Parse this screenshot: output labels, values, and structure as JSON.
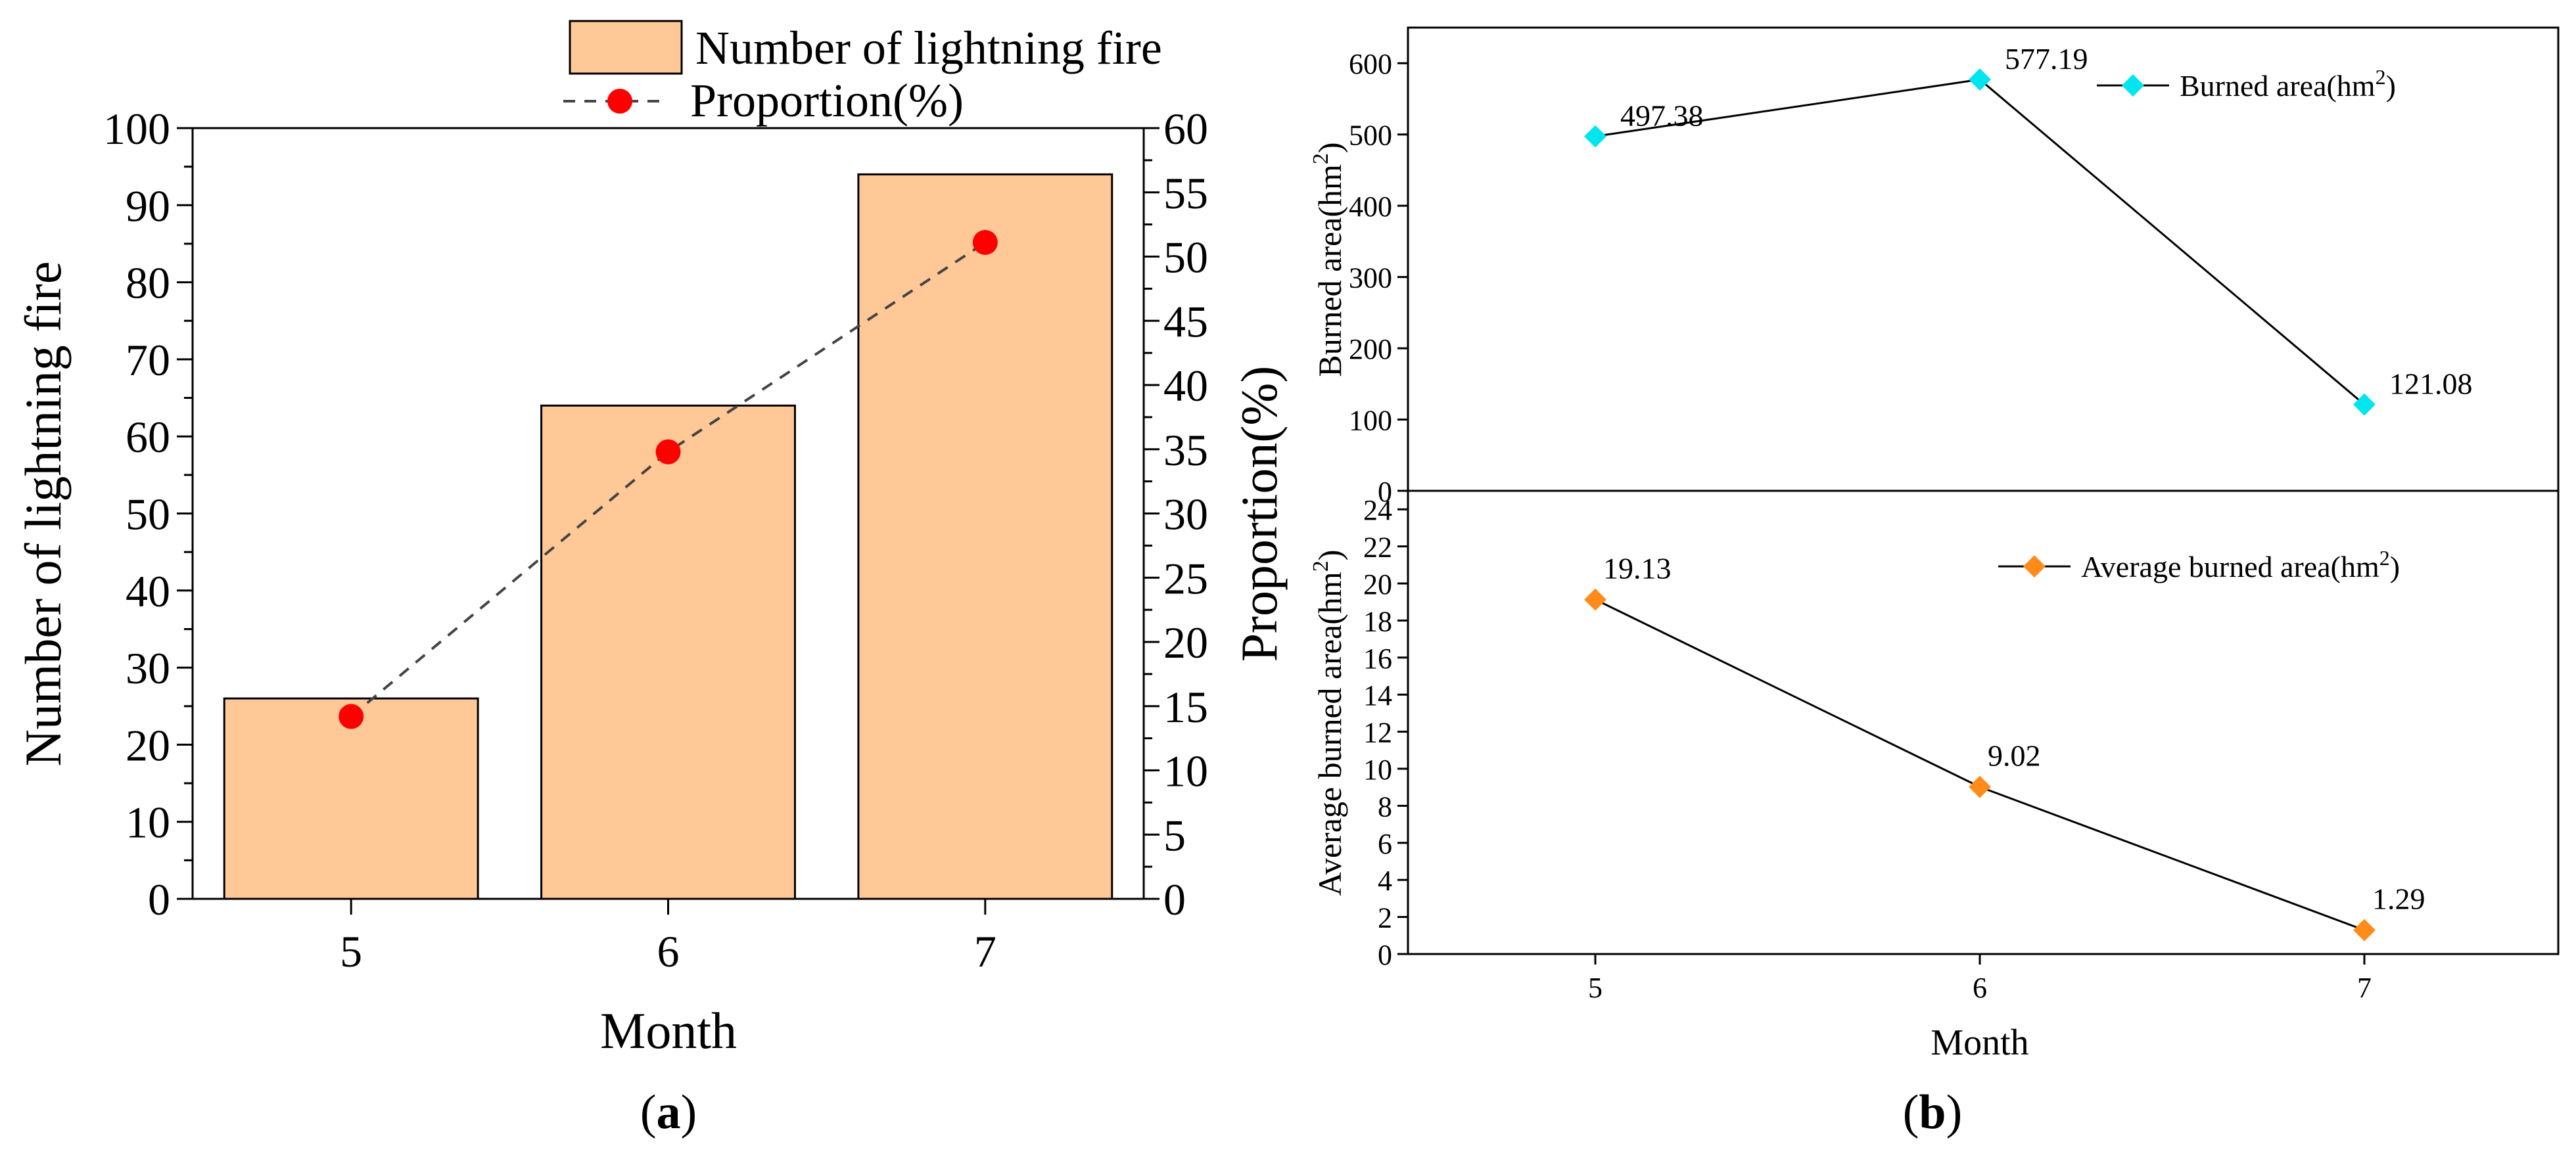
{
  "chart_data": [
    {
      "panel_label": "a",
      "type": "bar",
      "xlabel": "Month",
      "categories": [
        "5",
        "6",
        "7"
      ],
      "left_axis": {
        "label": "Number of lightning fire",
        "range": [
          0,
          100
        ],
        "ticks": [
          "0",
          "10",
          "20",
          "30",
          "40",
          "50",
          "60",
          "70",
          "80",
          "90",
          "100"
        ]
      },
      "right_axis": {
        "label": "Proportion(%)",
        "range": [
          0,
          60
        ],
        "ticks": [
          "0",
          "5",
          "10",
          "15",
          "20",
          "25",
          "30",
          "35",
          "40",
          "45",
          "50",
          "55",
          "60"
        ]
      },
      "series": [
        {
          "name": "Number of lightning fire",
          "kind": "bar",
          "axis": "left",
          "values": [
            26,
            64,
            94
          ],
          "color": "#FFC896"
        },
        {
          "name": "Proportion(%)",
          "kind": "line",
          "axis": "right",
          "values": [
            14.2,
            34.8,
            51.1
          ],
          "color": "#FF0000"
        }
      ],
      "legend": [
        "Number of lightning fire",
        "Proportion(%)"
      ],
      "legend_position": "top-right"
    },
    {
      "panel_label": "b",
      "type": "line",
      "xlabel": "Month",
      "categories": [
        "5",
        "6",
        "7"
      ],
      "subplots": [
        {
          "ylabel_text": "Burned area(hm",
          "ylabel_sup": "2",
          "ylabel_close": ")",
          "range": [
            0,
            650
          ],
          "ticks": [
            "0",
            "100",
            "200",
            "300",
            "400",
            "500",
            "600"
          ],
          "series_name": "Burned area(hm",
          "series_sup": "2",
          "series_close": ")",
          "values": [
            497.38,
            577.19,
            121.08
          ],
          "data_labels": [
            "497.38",
            "577.19",
            "121.08"
          ],
          "color": "#00E5EE",
          "legend_position": "top-right"
        },
        {
          "ylabel_text": "Average burned area(hm",
          "ylabel_sup": "2",
          "ylabel_close": ")",
          "range": [
            0,
            25
          ],
          "ticks": [
            "0",
            "2",
            "4",
            "6",
            "8",
            "10",
            "12",
            "14",
            "16",
            "18",
            "20",
            "22",
            "24"
          ],
          "series_name": "Average burned area(hm",
          "series_sup": "2",
          "series_close": ")",
          "values": [
            19.13,
            9.02,
            1.29
          ],
          "data_labels": [
            "19.13",
            "9.02",
            "1.29"
          ],
          "color": "#FF8C1A",
          "legend_position": "top-right"
        }
      ]
    }
  ]
}
